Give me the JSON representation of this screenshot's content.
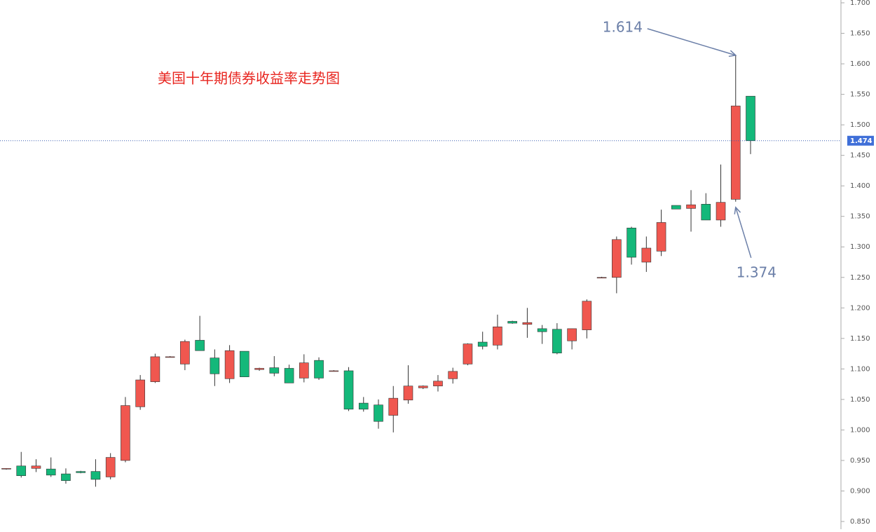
{
  "chart_data": {
    "type": "candlestick",
    "title": "美国十年期债券收益率走势图",
    "up_color": "#f0574f",
    "down_color": "#14b87a",
    "open": [
      0.936,
      0.941,
      0.937,
      0.936,
      0.928,
      0.932,
      0.932,
      0.923,
      0.95,
      1.038,
      1.079,
      1.12,
      1.108,
      1.147,
      1.118,
      1.084,
      1.129,
      1.099,
      1.102,
      1.101,
      1.085,
      1.114,
      1.097,
      1.097,
      1.044,
      1.041,
      1.024,
      1.049,
      1.069,
      1.072,
      1.084,
      1.108,
      1.144,
      1.139,
      1.178,
      1.173,
      1.166,
      1.165,
      1.146,
      1.164,
      1.25,
      1.25,
      1.331,
      1.275,
      1.293,
      1.368,
      1.363,
      1.37,
      1.344,
      1.378,
      1.547
    ],
    "high": [
      0.937,
      0.964,
      0.952,
      0.955,
      0.937,
      0.933,
      0.952,
      0.962,
      1.054,
      1.09,
      1.125,
      1.121,
      1.148,
      1.187,
      1.132,
      1.139,
      1.129,
      1.102,
      1.121,
      1.107,
      1.124,
      1.119,
      1.098,
      1.103,
      1.054,
      1.05,
      1.072,
      1.106,
      1.073,
      1.09,
      1.102,
      1.142,
      1.161,
      1.189,
      1.179,
      1.2,
      1.172,
      1.175,
      1.166,
      1.214,
      1.251,
      1.317,
      1.333,
      1.317,
      1.361,
      1.368,
      1.393,
      1.388,
      1.435,
      1.614,
      1.547
    ],
    "low": [
      0.935,
      0.922,
      0.931,
      0.923,
      0.912,
      0.929,
      0.907,
      0.919,
      0.947,
      1.033,
      1.077,
      1.119,
      1.098,
      1.13,
      1.072,
      1.077,
      1.087,
      1.097,
      1.088,
      1.077,
      1.078,
      1.082,
      1.096,
      1.031,
      1.03,
      1.002,
      0.996,
      1.043,
      1.067,
      1.063,
      1.076,
      1.106,
      1.132,
      1.132,
      1.174,
      1.151,
      1.141,
      1.124,
      1.132,
      1.15,
      1.249,
      1.224,
      1.271,
      1.259,
      1.285,
      1.362,
      1.325,
      1.344,
      1.333,
      1.374,
      1.452
    ],
    "close": [
      0.937,
      0.925,
      0.941,
      0.926,
      0.917,
      0.93,
      0.919,
      0.955,
      1.04,
      1.082,
      1.12,
      1.12,
      1.145,
      1.13,
      1.092,
      1.13,
      1.087,
      1.101,
      1.093,
      1.077,
      1.11,
      1.085,
      1.097,
      1.034,
      1.034,
      1.014,
      1.052,
      1.072,
      1.072,
      1.08,
      1.096,
      1.141,
      1.137,
      1.169,
      1.175,
      1.176,
      1.161,
      1.126,
      1.166,
      1.211,
      1.25,
      1.312,
      1.283,
      1.298,
      1.34,
      1.362,
      1.369,
      1.344,
      1.373,
      1.531,
      1.474
    ],
    "ylim": [
      0.85,
      1.7
    ],
    "yticks": [
      {
        "value": 0.85,
        "label": "0.850"
      },
      {
        "value": 0.9,
        "label": "0.900"
      },
      {
        "value": 0.95,
        "label": "0.950"
      },
      {
        "value": 1.0,
        "label": "1.000"
      },
      {
        "value": 1.05,
        "label": "1.050"
      },
      {
        "value": 1.1,
        "label": "1.100"
      },
      {
        "value": 1.15,
        "label": "1.150"
      },
      {
        "value": 1.2,
        "label": "1.200"
      },
      {
        "value": 1.25,
        "label": "1.250"
      },
      {
        "value": 1.3,
        "label": "1.300"
      },
      {
        "value": 1.35,
        "label": "1.350"
      },
      {
        "value": 1.4,
        "label": "1.400"
      },
      {
        "value": 1.45,
        "label": "1.450"
      },
      {
        "value": 1.5,
        "label": "1.500"
      },
      {
        "value": 1.55,
        "label": "1.550"
      },
      {
        "value": 1.6,
        "label": "1.600"
      },
      {
        "value": 1.65,
        "label": "1.650"
      },
      {
        "value": 1.7,
        "label": "1.700"
      }
    ],
    "last_price": {
      "value": 1.474,
      "label": "1.474"
    },
    "annotations": [
      {
        "label": "1.614",
        "value": 1.614
      },
      {
        "label": "1.374",
        "value": 1.374
      }
    ]
  }
}
